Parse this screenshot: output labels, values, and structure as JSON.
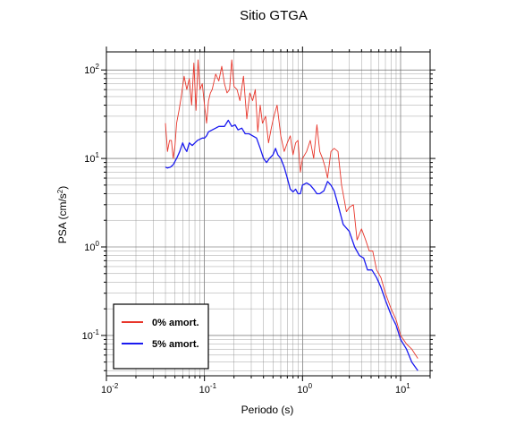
{
  "chart_data": {
    "type": "line",
    "title": "Sitio GTGA",
    "xlabel": "Periodo (s)",
    "ylabel_base": "PSA (cm/s",
    "ylabel_exp": "2",
    "ylabel_close": ")",
    "x_scale": "log",
    "y_scale": "log",
    "xlim": [
      0.01,
      20
    ],
    "ylim": [
      0.035,
      160
    ],
    "grid": true,
    "legend_position": "lower-left",
    "x_ticks": [
      {
        "base": "10",
        "exp": "-2",
        "value": 0.01
      },
      {
        "base": "10",
        "exp": "-1",
        "value": 0.1
      },
      {
        "base": "10",
        "exp": "0",
        "value": 1
      },
      {
        "base": "10",
        "exp": "1",
        "value": 10
      }
    ],
    "y_ticks": [
      {
        "base": "10",
        "exp": "-1",
        "value": 0.1
      },
      {
        "base": "10",
        "exp": "0",
        "value": 1
      },
      {
        "base": "10",
        "exp": "1",
        "value": 10
      },
      {
        "base": "10",
        "exp": "2",
        "value": 100
      }
    ],
    "series": [
      {
        "name": "0% amort.",
        "color": "#e8352a",
        "points": [
          [
            0.04,
            25
          ],
          [
            0.042,
            12
          ],
          [
            0.044,
            16
          ],
          [
            0.046,
            16
          ],
          [
            0.048,
            10
          ],
          [
            0.05,
            14
          ],
          [
            0.052,
            25
          ],
          [
            0.055,
            35
          ],
          [
            0.058,
            50
          ],
          [
            0.062,
            85
          ],
          [
            0.066,
            60
          ],
          [
            0.07,
            80
          ],
          [
            0.074,
            40
          ],
          [
            0.078,
            120
          ],
          [
            0.082,
            35
          ],
          [
            0.086,
            130
          ],
          [
            0.09,
            60
          ],
          [
            0.095,
            70
          ],
          [
            0.1,
            40
          ],
          [
            0.105,
            25
          ],
          [
            0.11,
            45
          ],
          [
            0.115,
            55
          ],
          [
            0.12,
            60
          ],
          [
            0.13,
            90
          ],
          [
            0.14,
            75
          ],
          [
            0.15,
            110
          ],
          [
            0.16,
            70
          ],
          [
            0.17,
            55
          ],
          [
            0.18,
            60
          ],
          [
            0.19,
            130
          ],
          [
            0.2,
            65
          ],
          [
            0.215,
            60
          ],
          [
            0.23,
            45
          ],
          [
            0.25,
            85
          ],
          [
            0.27,
            28
          ],
          [
            0.29,
            55
          ],
          [
            0.31,
            45
          ],
          [
            0.33,
            60
          ],
          [
            0.35,
            20
          ],
          [
            0.37,
            40
          ],
          [
            0.39,
            25
          ],
          [
            0.42,
            30
          ],
          [
            0.45,
            15
          ],
          [
            0.48,
            22
          ],
          [
            0.51,
            30
          ],
          [
            0.55,
            40
          ],
          [
            0.6,
            18
          ],
          [
            0.65,
            12
          ],
          [
            0.7,
            15
          ],
          [
            0.75,
            18
          ],
          [
            0.8,
            11
          ],
          [
            0.85,
            15
          ],
          [
            0.9,
            16
          ],
          [
            0.95,
            7
          ],
          [
            1.0,
            10
          ],
          [
            1.1,
            12
          ],
          [
            1.2,
            16
          ],
          [
            1.3,
            10
          ],
          [
            1.4,
            24
          ],
          [
            1.5,
            12
          ],
          [
            1.6,
            10
          ],
          [
            1.7,
            8
          ],
          [
            1.8,
            6
          ],
          [
            1.95,
            12
          ],
          [
            2.1,
            13
          ],
          [
            2.3,
            12
          ],
          [
            2.5,
            5
          ],
          [
            2.8,
            2.5
          ],
          [
            3.0,
            2.8
          ],
          [
            3.3,
            3
          ],
          [
            3.6,
            1.2
          ],
          [
            4.0,
            1.6
          ],
          [
            4.4,
            1.2
          ],
          [
            4.8,
            0.9
          ],
          [
            5.2,
            0.9
          ],
          [
            5.7,
            0.55
          ],
          [
            6.3,
            0.45
          ],
          [
            7.0,
            0.3
          ],
          [
            8.0,
            0.2
          ],
          [
            9.0,
            0.15
          ],
          [
            10.0,
            0.1
          ],
          [
            11.5,
            0.08
          ],
          [
            13.0,
            0.07
          ],
          [
            15.0,
            0.055
          ]
        ]
      },
      {
        "name": "5% amort.",
        "color": "#1a1af0",
        "points": [
          [
            0.04,
            8
          ],
          [
            0.042,
            7.8
          ],
          [
            0.045,
            8
          ],
          [
            0.048,
            8.5
          ],
          [
            0.052,
            10
          ],
          [
            0.056,
            12
          ],
          [
            0.06,
            15
          ],
          [
            0.063,
            13
          ],
          [
            0.066,
            12
          ],
          [
            0.07,
            15
          ],
          [
            0.075,
            14
          ],
          [
            0.08,
            15
          ],
          [
            0.085,
            16
          ],
          [
            0.09,
            16.5
          ],
          [
            0.095,
            17
          ],
          [
            0.1,
            17
          ],
          [
            0.105,
            18
          ],
          [
            0.11,
            20
          ],
          [
            0.12,
            21
          ],
          [
            0.13,
            22
          ],
          [
            0.14,
            23
          ],
          [
            0.15,
            23
          ],
          [
            0.16,
            23
          ],
          [
            0.175,
            27
          ],
          [
            0.19,
            23
          ],
          [
            0.205,
            24
          ],
          [
            0.22,
            21
          ],
          [
            0.24,
            22
          ],
          [
            0.26,
            19
          ],
          [
            0.285,
            19
          ],
          [
            0.31,
            18
          ],
          [
            0.34,
            17
          ],
          [
            0.37,
            13
          ],
          [
            0.4,
            10
          ],
          [
            0.43,
            9
          ],
          [
            0.46,
            10
          ],
          [
            0.5,
            11
          ],
          [
            0.53,
            13
          ],
          [
            0.56,
            11
          ],
          [
            0.6,
            10
          ],
          [
            0.65,
            8
          ],
          [
            0.7,
            6
          ],
          [
            0.75,
            4.5
          ],
          [
            0.8,
            4.2
          ],
          [
            0.85,
            4.5
          ],
          [
            0.9,
            4.0
          ],
          [
            0.95,
            4.0
          ],
          [
            1.0,
            5.0
          ],
          [
            1.1,
            5.3
          ],
          [
            1.2,
            5.0
          ],
          [
            1.3,
            4.5
          ],
          [
            1.4,
            4.0
          ],
          [
            1.5,
            4.0
          ],
          [
            1.65,
            4.3
          ],
          [
            1.8,
            5.5
          ],
          [
            1.95,
            5.0
          ],
          [
            2.1,
            4.3
          ],
          [
            2.3,
            3.0
          ],
          [
            2.6,
            1.8
          ],
          [
            3.0,
            1.5
          ],
          [
            3.4,
            1.0
          ],
          [
            3.8,
            0.8
          ],
          [
            4.2,
            0.75
          ],
          [
            4.6,
            0.55
          ],
          [
            5.1,
            0.55
          ],
          [
            5.7,
            0.45
          ],
          [
            6.3,
            0.35
          ],
          [
            7.0,
            0.25
          ],
          [
            8.0,
            0.17
          ],
          [
            9.0,
            0.13
          ],
          [
            10.0,
            0.09
          ],
          [
            11.5,
            0.07
          ],
          [
            13.0,
            0.05
          ],
          [
            15.0,
            0.04
          ]
        ]
      }
    ]
  }
}
